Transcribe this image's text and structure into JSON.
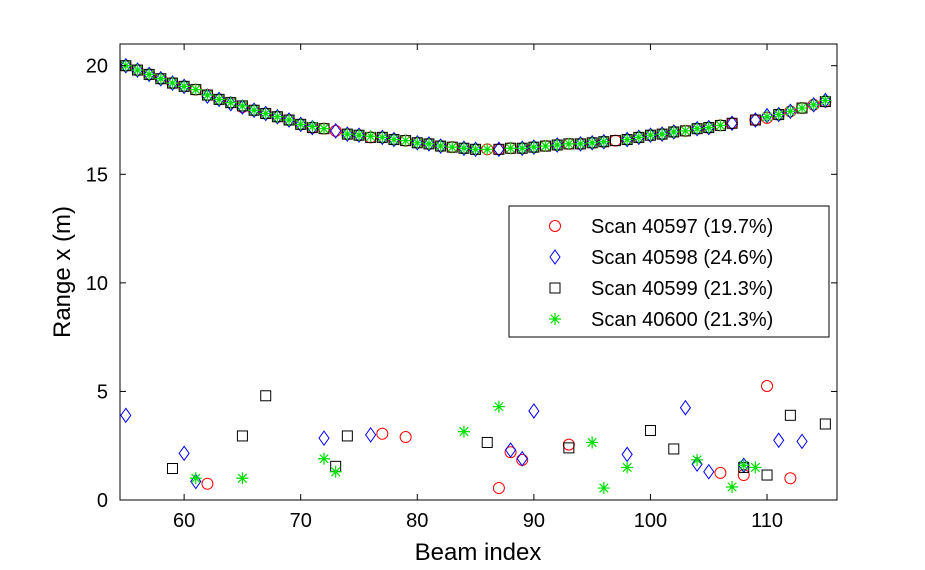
{
  "chart_data": {
    "type": "scatter",
    "xlabel": "Beam index",
    "ylabel": "Range x (m)",
    "xlim": [
      54.5,
      116
    ],
    "ylim": [
      0,
      21
    ],
    "xticks": [
      60,
      70,
      80,
      90,
      100,
      110
    ],
    "yticks": [
      0,
      5,
      10,
      15,
      20
    ],
    "legend_position": "center-right",
    "grid": false,
    "series": [
      {
        "name": "Scan 40597 (19.7%)",
        "marker": "circle",
        "color": "#ff0000",
        "points": [
          [
            55,
            20.0
          ],
          [
            56,
            19.8
          ],
          [
            57,
            19.6
          ],
          [
            58,
            19.4
          ],
          [
            59,
            19.2
          ],
          [
            60,
            19.05
          ],
          [
            61,
            18.9
          ],
          [
            62,
            18.65
          ],
          [
            63,
            18.45
          ],
          [
            64,
            18.3
          ],
          [
            65,
            18.1
          ],
          [
            66,
            17.95
          ],
          [
            67,
            17.8
          ],
          [
            68,
            17.65
          ],
          [
            69,
            17.5
          ],
          [
            70,
            17.3
          ],
          [
            71,
            17.15
          ],
          [
            72,
            17.1
          ],
          [
            73,
            17.0
          ],
          [
            74,
            16.85
          ],
          [
            75,
            16.8
          ],
          [
            76,
            16.7
          ],
          [
            77,
            16.7
          ],
          [
            78,
            16.6
          ],
          [
            79,
            16.55
          ],
          [
            80,
            16.45
          ],
          [
            81,
            16.4
          ],
          [
            82,
            16.3
          ],
          [
            83,
            16.25
          ],
          [
            84,
            16.2
          ],
          [
            85,
            16.15
          ],
          [
            86,
            16.15
          ],
          [
            87,
            16.15
          ],
          [
            88,
            16.2
          ],
          [
            89,
            16.2
          ],
          [
            90,
            16.25
          ],
          [
            91,
            16.3
          ],
          [
            92,
            16.35
          ],
          [
            93,
            16.4
          ],
          [
            94,
            16.4
          ],
          [
            95,
            16.45
          ],
          [
            96,
            16.5
          ],
          [
            97,
            16.55
          ],
          [
            98,
            16.6
          ],
          [
            99,
            16.7
          ],
          [
            100,
            16.8
          ],
          [
            101,
            16.85
          ],
          [
            102,
            16.95
          ],
          [
            103,
            17.0
          ],
          [
            104,
            17.1
          ],
          [
            105,
            17.15
          ],
          [
            106,
            17.25
          ],
          [
            107,
            17.35
          ],
          [
            109,
            17.5
          ],
          [
            110,
            17.6
          ],
          [
            111,
            17.75
          ],
          [
            112,
            17.9
          ],
          [
            113,
            18.05
          ],
          [
            114,
            18.2
          ],
          [
            115,
            18.35
          ],
          [
            62,
            0.75
          ],
          [
            77,
            3.05
          ],
          [
            79,
            2.9
          ],
          [
            87,
            0.55
          ],
          [
            88,
            2.2
          ],
          [
            89,
            1.85
          ],
          [
            93,
            2.55
          ],
          [
            106,
            1.25
          ],
          [
            108,
            1.15
          ],
          [
            110,
            5.25
          ],
          [
            112,
            1.0
          ]
        ]
      },
      {
        "name": "Scan 40598 (24.6%)",
        "marker": "diamond",
        "color": "#0000ff",
        "points": [
          [
            55,
            20.0
          ],
          [
            56,
            19.8
          ],
          [
            57,
            19.6
          ],
          [
            58,
            19.4
          ],
          [
            59,
            19.2
          ],
          [
            60,
            19.05
          ],
          [
            62,
            18.6
          ],
          [
            63,
            18.45
          ],
          [
            64,
            18.25
          ],
          [
            65,
            18.1
          ],
          [
            66,
            17.95
          ],
          [
            67,
            17.8
          ],
          [
            68,
            17.65
          ],
          [
            69,
            17.5
          ],
          [
            70,
            17.3
          ],
          [
            71,
            17.15
          ],
          [
            73,
            17.0
          ],
          [
            74,
            16.85
          ],
          [
            75,
            16.8
          ],
          [
            77,
            16.7
          ],
          [
            78,
            16.6
          ],
          [
            80,
            16.45
          ],
          [
            81,
            16.4
          ],
          [
            82,
            16.3
          ],
          [
            84,
            16.2
          ],
          [
            85,
            16.15
          ],
          [
            87,
            16.15
          ],
          [
            89,
            16.2
          ],
          [
            90,
            16.25
          ],
          [
            92,
            16.35
          ],
          [
            94,
            16.4
          ],
          [
            95,
            16.45
          ],
          [
            96,
            16.5
          ],
          [
            98,
            16.6
          ],
          [
            99,
            16.7
          ],
          [
            100,
            16.8
          ],
          [
            101,
            16.85
          ],
          [
            102,
            16.95
          ],
          [
            104,
            17.1
          ],
          [
            105,
            17.15
          ],
          [
            107,
            17.35
          ],
          [
            109,
            17.5
          ],
          [
            110,
            17.7
          ],
          [
            111,
            17.75
          ],
          [
            112,
            17.9
          ],
          [
            114,
            18.2
          ],
          [
            115,
            18.4
          ],
          [
            55,
            3.9
          ],
          [
            60,
            2.15
          ],
          [
            61,
            0.85
          ],
          [
            72,
            2.85
          ],
          [
            76,
            3.0
          ],
          [
            88,
            2.3
          ],
          [
            89,
            1.9
          ],
          [
            90,
            4.1
          ],
          [
            98,
            2.1
          ],
          [
            103,
            4.25
          ],
          [
            104,
            1.65
          ],
          [
            105,
            1.3
          ],
          [
            108,
            1.6
          ],
          [
            111,
            2.75
          ],
          [
            113,
            2.7
          ]
        ]
      },
      {
        "name": "Scan 40599 (21.3%)",
        "marker": "square",
        "color": "#000000",
        "points": [
          [
            55,
            20.0
          ],
          [
            56,
            19.8
          ],
          [
            57,
            19.6
          ],
          [
            58,
            19.4
          ],
          [
            59,
            19.2
          ],
          [
            60,
            19.05
          ],
          [
            61,
            18.9
          ],
          [
            62,
            18.65
          ],
          [
            63,
            18.45
          ],
          [
            64,
            18.3
          ],
          [
            65,
            18.15
          ],
          [
            66,
            17.95
          ],
          [
            67,
            17.8
          ],
          [
            68,
            17.65
          ],
          [
            69,
            17.5
          ],
          [
            70,
            17.3
          ],
          [
            71,
            17.15
          ],
          [
            72,
            17.1
          ],
          [
            74,
            16.85
          ],
          [
            75,
            16.8
          ],
          [
            76,
            16.7
          ],
          [
            77,
            16.7
          ],
          [
            78,
            16.6
          ],
          [
            79,
            16.55
          ],
          [
            80,
            16.45
          ],
          [
            81,
            16.4
          ],
          [
            82,
            16.3
          ],
          [
            83,
            16.25
          ],
          [
            84,
            16.2
          ],
          [
            85,
            16.15
          ],
          [
            87,
            16.15
          ],
          [
            88,
            16.2
          ],
          [
            89,
            16.2
          ],
          [
            90,
            16.25
          ],
          [
            91,
            16.3
          ],
          [
            92,
            16.35
          ],
          [
            93,
            16.4
          ],
          [
            94,
            16.4
          ],
          [
            95,
            16.45
          ],
          [
            96,
            16.5
          ],
          [
            97,
            16.55
          ],
          [
            98,
            16.6
          ],
          [
            99,
            16.7
          ],
          [
            100,
            16.8
          ],
          [
            101,
            16.85
          ],
          [
            102,
            16.95
          ],
          [
            103,
            17.0
          ],
          [
            104,
            17.1
          ],
          [
            105,
            17.15
          ],
          [
            106,
            17.25
          ],
          [
            107,
            17.35
          ],
          [
            109,
            17.5
          ],
          [
            111,
            17.75
          ],
          [
            113,
            18.05
          ],
          [
            115,
            18.35
          ],
          [
            59,
            1.45
          ],
          [
            65,
            2.95
          ],
          [
            67,
            4.8
          ],
          [
            73,
            1.55
          ],
          [
            74,
            2.95
          ],
          [
            86,
            2.65
          ],
          [
            93,
            2.4
          ],
          [
            100,
            3.2
          ],
          [
            102,
            2.35
          ],
          [
            108,
            1.5
          ],
          [
            110,
            1.15
          ],
          [
            112,
            3.9
          ],
          [
            115,
            3.5
          ]
        ]
      },
      {
        "name": "Scan 40600 (21.3%)",
        "marker": "star",
        "color": "#00dd00",
        "points": [
          [
            55,
            20.0
          ],
          [
            56,
            19.8
          ],
          [
            57,
            19.6
          ],
          [
            58,
            19.4
          ],
          [
            59,
            19.2
          ],
          [
            60,
            19.05
          ],
          [
            61,
            18.9
          ],
          [
            62,
            18.65
          ],
          [
            63,
            18.45
          ],
          [
            64,
            18.3
          ],
          [
            65,
            18.15
          ],
          [
            66,
            17.95
          ],
          [
            67,
            17.8
          ],
          [
            68,
            17.65
          ],
          [
            69,
            17.5
          ],
          [
            70,
            17.3
          ],
          [
            71,
            17.2
          ],
          [
            72,
            17.1
          ],
          [
            74,
            16.85
          ],
          [
            75,
            16.8
          ],
          [
            76,
            16.75
          ],
          [
            77,
            16.7
          ],
          [
            78,
            16.6
          ],
          [
            79,
            16.55
          ],
          [
            80,
            16.45
          ],
          [
            81,
            16.4
          ],
          [
            82,
            16.3
          ],
          [
            83,
            16.25
          ],
          [
            84,
            16.2
          ],
          [
            85,
            16.15
          ],
          [
            86,
            16.15
          ],
          [
            88,
            16.2
          ],
          [
            89,
            16.2
          ],
          [
            90,
            16.25
          ],
          [
            91,
            16.3
          ],
          [
            92,
            16.35
          ],
          [
            93,
            16.4
          ],
          [
            94,
            16.4
          ],
          [
            95,
            16.45
          ],
          [
            96,
            16.5
          ],
          [
            98,
            16.6
          ],
          [
            99,
            16.7
          ],
          [
            100,
            16.8
          ],
          [
            101,
            16.85
          ],
          [
            102,
            16.95
          ],
          [
            103,
            17.0
          ],
          [
            104,
            17.1
          ],
          [
            105,
            17.15
          ],
          [
            106,
            17.25
          ],
          [
            110,
            17.65
          ],
          [
            111,
            17.75
          ],
          [
            112,
            17.9
          ],
          [
            113,
            18.05
          ],
          [
            114,
            18.2
          ],
          [
            115,
            18.4
          ],
          [
            61,
            1.0
          ],
          [
            65,
            1.0
          ],
          [
            72,
            1.9
          ],
          [
            73,
            1.3
          ],
          [
            84,
            3.15
          ],
          [
            87,
            4.3
          ],
          [
            95,
            2.65
          ],
          [
            96,
            0.55
          ],
          [
            98,
            1.5
          ],
          [
            104,
            1.85
          ],
          [
            107,
            0.6
          ],
          [
            108,
            1.6
          ],
          [
            109,
            1.5
          ]
        ]
      }
    ]
  }
}
